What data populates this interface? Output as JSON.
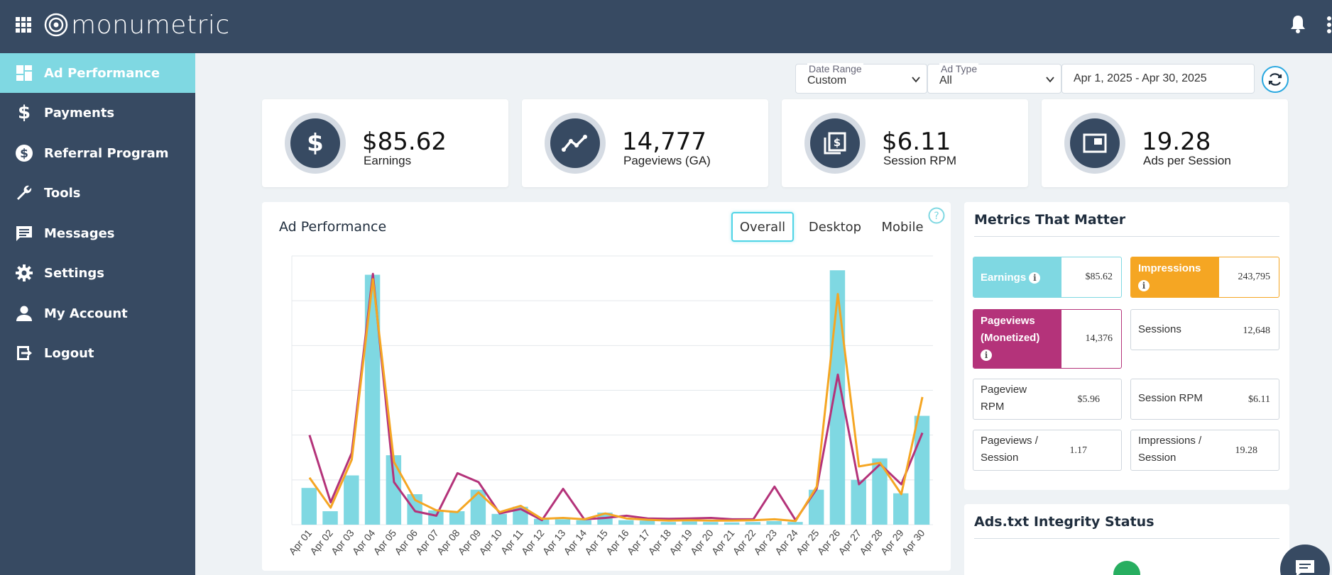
{
  "brand": {
    "name": "monumetric"
  },
  "topbar": {
    "apps_icon": "grid-icon",
    "bell_icon": "bell-icon",
    "menu_icon": "kebab-icon"
  },
  "sidebar": {
    "items": [
      {
        "label": "Ad Performance",
        "icon": "dashboard-icon",
        "active": true
      },
      {
        "label": "Payments",
        "icon": "dollar-icon"
      },
      {
        "label": "Referral Program",
        "icon": "dollar-circle-icon"
      },
      {
        "label": "Tools",
        "icon": "wrench-icon"
      },
      {
        "label": "Messages",
        "icon": "message-icon"
      },
      {
        "label": "Settings",
        "icon": "gear-icon"
      },
      {
        "label": "My Account",
        "icon": "person-icon"
      },
      {
        "label": "Logout",
        "icon": "logout-icon"
      }
    ]
  },
  "filters": {
    "date_range": {
      "label": "Date Range",
      "value": "Custom"
    },
    "ad_type": {
      "label": "Ad Type",
      "value": "All"
    },
    "dates": {
      "value": "Apr 1, 2025 - Apr 30, 2025"
    }
  },
  "stats": [
    {
      "value": "$85.62",
      "label": "Earnings",
      "icon": "dollar-icon"
    },
    {
      "value": "14,777",
      "label": "Pageviews (GA)",
      "icon": "trend-icon"
    },
    {
      "value": "$6.11",
      "label": "Session RPM",
      "icon": "session-rpm-icon"
    },
    {
      "value": "19.28",
      "label": "Ads per Session",
      "icon": "ad-window-icon"
    }
  ],
  "performance": {
    "title": "Ad Performance",
    "tabs": [
      "Overall",
      "Desktop",
      "Mobile"
    ],
    "active_tab": "Overall"
  },
  "chart_data": {
    "type": "bar",
    "categories": [
      "Apr 01",
      "Apr 02",
      "Apr 03",
      "Apr 04",
      "Apr 05",
      "Apr 06",
      "Apr 07",
      "Apr 08",
      "Apr 09",
      "Apr 10",
      "Apr 11",
      "Apr 12",
      "Apr 13",
      "Apr 14",
      "Apr 15",
      "Apr 16",
      "Apr 17",
      "Apr 18",
      "Apr 19",
      "Apr 20",
      "Apr 21",
      "Apr 22",
      "Apr 23",
      "Apr 24",
      "Apr 25",
      "Apr 26",
      "Apr 27",
      "Apr 28",
      "Apr 29",
      "Apr 30"
    ],
    "ylim": [
      0,
      6
    ],
    "grid": true,
    "legend": "none",
    "series": [
      {
        "kind": "bar",
        "color": "#7fd8e2",
        "values": [
          0.82,
          0.3,
          1.1,
          5.58,
          1.55,
          0.68,
          0.32,
          0.3,
          0.78,
          0.24,
          0.4,
          0.13,
          0.12,
          0.1,
          0.27,
          0.1,
          0.09,
          0.06,
          0.07,
          0.06,
          0.05,
          0.06,
          0.08,
          0.06,
          0.78,
          5.68,
          1.0,
          1.48,
          0.7,
          2.43
        ]
      },
      {
        "kind": "line",
        "color": "#b4337a",
        "values": [
          2.0,
          0.5,
          1.6,
          5.6,
          0.95,
          0.3,
          0.2,
          1.15,
          0.95,
          0.25,
          0.35,
          0.1,
          0.8,
          0.12,
          0.15,
          0.2,
          0.14,
          0.13,
          0.14,
          0.15,
          0.12,
          0.12,
          0.85,
          0.1,
          0.8,
          3.35,
          0.9,
          1.35,
          0.9,
          2.05
        ]
      },
      {
        "kind": "line",
        "color": "#f5a623",
        "values": [
          1.05,
          0.38,
          1.45,
          5.48,
          1.4,
          0.55,
          0.32,
          0.28,
          0.72,
          0.28,
          0.42,
          0.13,
          0.15,
          0.12,
          0.25,
          0.14,
          0.11,
          0.09,
          0.1,
          0.09,
          0.09,
          0.1,
          0.12,
          0.08,
          0.85,
          5.15,
          1.3,
          1.38,
          0.68,
          2.85
        ]
      }
    ]
  },
  "metrics": {
    "title": "Metrics That Matter",
    "items": [
      {
        "label": "Earnings",
        "value": "$85.62",
        "color": "#7fd8e2",
        "info": true
      },
      {
        "label": "Impressions",
        "value": "243,795",
        "color": "#f5a623",
        "info": true
      },
      {
        "label": "Pageviews (Monetized)",
        "value": "14,376",
        "color": "#b4337a",
        "info": true
      },
      {
        "label": "Sessions",
        "value": "12,648"
      },
      {
        "label": "Pageview RPM",
        "value": "$5.96"
      },
      {
        "label": "Session RPM",
        "value": "$6.11"
      },
      {
        "label": "Pageviews / Session",
        "value": "1.17"
      },
      {
        "label": "Impressions / Session",
        "value": "19.28"
      }
    ],
    "info_glyph": "i"
  },
  "adstxt": {
    "title": "Ads.txt Integrity Status"
  },
  "colors": {
    "primary": "#374a62",
    "accent": "#7fd8e2",
    "orange": "#f5a623",
    "magenta": "#b4337a",
    "background": "#eef2f5"
  }
}
